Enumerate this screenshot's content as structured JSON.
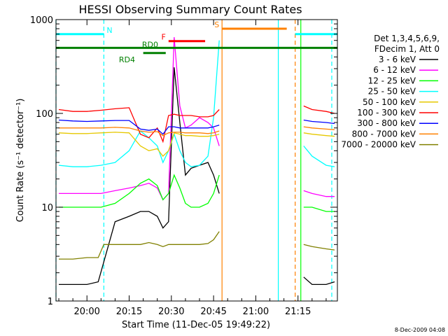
{
  "chart_data": {
    "type": "line",
    "title": "HESSI Observing Summary Count Rates",
    "xlabel": "Start Time (11-Dec-05 19:49:22)",
    "ylabel": "Count Rate (s⁻¹ detector⁻¹)",
    "y_scale": "log",
    "ylim": [
      1,
      1000
    ],
    "xlim": [
      "19:49",
      "21:29"
    ],
    "x_ticks": [
      "20:00",
      "20:15",
      "20:30",
      "20:45",
      "21:00",
      "21:15"
    ],
    "y_ticks": [
      "1",
      "10",
      "100",
      "1000"
    ],
    "grid": false,
    "legend_header": [
      "Det 1,3,4,5,6,9,",
      "FDecim 1, Att 0"
    ],
    "legend_position": "right",
    "footer_text": "8-Dec-2009 04:08",
    "series": [
      {
        "name": "3 - 6 keV",
        "color": "#000000",
        "x": [
          "19:50",
          "19:55",
          "20:00",
          "20:04",
          "20:10",
          "20:15",
          "20:19",
          "20:22",
          "20:25",
          "20:27",
          "20:29",
          "20:31",
          "20:33",
          "20:35",
          "20:37",
          "20:40",
          "20:43",
          "20:45",
          "20:47",
          "21:17",
          "21:20",
          "21:25",
          "21:28"
        ],
        "values": [
          1.5,
          1.5,
          1.5,
          1.6,
          7,
          8,
          9,
          9,
          8,
          6,
          7,
          310,
          80,
          22,
          26,
          28,
          30,
          22,
          14,
          1.8,
          1.5,
          1.5,
          1.6
        ]
      },
      {
        "name": "6 - 12 keV",
        "color": "#ff00ff",
        "x": [
          "19:50",
          "19:55",
          "20:00",
          "20:05",
          "20:10",
          "20:15",
          "20:19",
          "20:22",
          "20:25",
          "20:27",
          "20:29",
          "20:31",
          "20:33",
          "20:35",
          "20:37",
          "20:40",
          "20:43",
          "20:45",
          "20:47",
          "21:17",
          "21:20",
          "21:25",
          "21:28"
        ],
        "values": [
          14,
          14,
          14,
          14,
          15,
          16,
          17,
          18,
          16,
          12,
          14,
          650,
          120,
          70,
          75,
          90,
          80,
          70,
          45,
          15,
          14,
          13,
          13
        ]
      },
      {
        "name": "12 - 25 keV",
        "color": "#00ff00",
        "x": [
          "19:50",
          "19:55",
          "20:00",
          "20:05",
          "20:10",
          "20:15",
          "20:19",
          "20:22",
          "20:25",
          "20:27",
          "20:29",
          "20:31",
          "20:33",
          "20:35",
          "20:37",
          "20:40",
          "20:43",
          "20:45",
          "20:47",
          "21:17",
          "21:20",
          "21:25",
          "21:28"
        ],
        "values": [
          10,
          10,
          10,
          10,
          11,
          14,
          18,
          20,
          17,
          12,
          14,
          22,
          16,
          11,
          10,
          10,
          11,
          14,
          22,
          10,
          10,
          9,
          9
        ]
      },
      {
        "name": "25 - 50 keV",
        "color": "#00ffff",
        "x": [
          "19:50",
          "19:55",
          "20:00",
          "20:05",
          "20:10",
          "20:15",
          "20:19",
          "20:22",
          "20:25",
          "20:27",
          "20:29",
          "20:31",
          "20:33",
          "20:35",
          "20:37",
          "20:40",
          "20:43",
          "20:45",
          "20:47",
          "21:17",
          "21:20",
          "21:25",
          "21:28"
        ],
        "values": [
          28,
          27,
          27,
          28,
          30,
          40,
          65,
          55,
          45,
          30,
          40,
          60,
          40,
          30,
          27,
          28,
          35,
          90,
          600,
          45,
          35,
          28,
          27
        ]
      },
      {
        "name": "50 - 100 keV",
        "color": "#e6c800",
        "x": [
          "19:50",
          "19:55",
          "20:00",
          "20:05",
          "20:10",
          "20:15",
          "20:19",
          "20:22",
          "20:25",
          "20:27",
          "20:29",
          "20:31",
          "20:33",
          "20:35",
          "20:37",
          "20:40",
          "20:43",
          "20:45",
          "20:47",
          "21:17",
          "21:20",
          "21:25",
          "21:28"
        ],
        "values": [
          62,
          61,
          61,
          62,
          63,
          62,
          45,
          40,
          42,
          35,
          40,
          62,
          60,
          58,
          58,
          57,
          57,
          58,
          60,
          62,
          60,
          58,
          57
        ]
      },
      {
        "name": "100 - 300 keV",
        "color": "#ff0000",
        "x": [
          "19:50",
          "19:55",
          "20:00",
          "20:05",
          "20:10",
          "20:15",
          "20:19",
          "20:22",
          "20:25",
          "20:27",
          "20:29",
          "20:31",
          "20:33",
          "20:35",
          "20:37",
          "20:40",
          "20:43",
          "20:45",
          "20:47",
          "21:17",
          "21:20",
          "21:25",
          "21:28"
        ],
        "values": [
          110,
          105,
          105,
          108,
          112,
          115,
          60,
          55,
          70,
          50,
          95,
          98,
          95,
          95,
          95,
          92,
          92,
          95,
          110,
          120,
          110,
          105,
          100
        ]
      },
      {
        "name": "300 - 800 keV",
        "color": "#0000ff",
        "x": [
          "19:50",
          "19:55",
          "20:00",
          "20:05",
          "20:10",
          "20:15",
          "20:19",
          "20:22",
          "20:25",
          "20:27",
          "20:29",
          "20:31",
          "20:33",
          "20:35",
          "20:37",
          "20:40",
          "20:43",
          "20:45",
          "20:47",
          "21:17",
          "21:20",
          "21:25",
          "21:28"
        ],
        "values": [
          85,
          83,
          82,
          83,
          84,
          84,
          68,
          66,
          68,
          60,
          72,
          72,
          70,
          70,
          70,
          70,
          70,
          72,
          75,
          85,
          82,
          80,
          78
        ]
      },
      {
        "name": "800 - 7000 keV",
        "color": "#ff8000",
        "x": [
          "19:50",
          "19:55",
          "20:00",
          "20:05",
          "20:10",
          "20:15",
          "20:19",
          "20:22",
          "20:25",
          "20:27",
          "20:29",
          "20:31",
          "20:33",
          "20:35",
          "20:37",
          "20:40",
          "20:43",
          "20:45",
          "20:47",
          "21:17",
          "21:20",
          "21:25",
          "21:28"
        ],
        "values": [
          70,
          70,
          70,
          70,
          71,
          70,
          65,
          63,
          64,
          58,
          62,
          63,
          63,
          62,
          62,
          62,
          61,
          62,
          65,
          72,
          70,
          68,
          67
        ]
      },
      {
        "name": "7000 - 20000 keV",
        "color": "#808000",
        "x": [
          "19:50",
          "19:55",
          "20:00",
          "20:04",
          "20:06",
          "20:10",
          "20:15",
          "20:19",
          "20:22",
          "20:25",
          "20:27",
          "20:29",
          "20:31",
          "20:33",
          "20:35",
          "20:37",
          "20:40",
          "20:43",
          "20:45",
          "20:47",
          "21:17",
          "21:20",
          "21:25",
          "21:28"
        ],
        "values": [
          2.8,
          2.8,
          2.9,
          2.9,
          4,
          4,
          4,
          4,
          4.2,
          4,
          3.8,
          4,
          4,
          4,
          4,
          4,
          4,
          4.1,
          4.5,
          5.5,
          4,
          3.8,
          3.6,
          3.5
        ]
      }
    ],
    "annotations": [
      {
        "label": "N",
        "color": "#00ffff",
        "y_value": 700,
        "x_start": "19:49",
        "x_end": "20:06"
      },
      {
        "label": "",
        "color": "#00ffff",
        "y_value": 700,
        "x_start": "21:14",
        "x_end": "21:29"
      },
      {
        "label": "S",
        "color": "#ff8000",
        "y_value": 800,
        "x_start": "20:48",
        "x_end": "21:11"
      },
      {
        "label": "F",
        "color": "#ff0000",
        "y_value": 590,
        "x_start": "20:29",
        "x_end": "20:42"
      },
      {
        "label": "RD0",
        "color": "#008000",
        "y_value": 500,
        "x_start": "19:49",
        "x_end": "21:29"
      },
      {
        "label": "RD4",
        "color": "#008000",
        "y_value": 440,
        "x_start": "20:20",
        "x_end": "20:28"
      }
    ],
    "vertical_markers": [
      {
        "x": "20:06",
        "color": "#00ffff",
        "dashed": true
      },
      {
        "x": "20:48",
        "color": "#ff8000",
        "dashed": false
      },
      {
        "x": "21:08",
        "color": "#00ffff",
        "dashed": false
      },
      {
        "x": "21:14",
        "color": "#ff8000",
        "dashed": true
      },
      {
        "x": "21:16",
        "color": "#00ff00",
        "dashed": false
      },
      {
        "x": "21:27",
        "color": "#00ffff",
        "dashed": true
      },
      {
        "x": "19:49",
        "color": "#00ffff",
        "dashed": true
      }
    ]
  }
}
